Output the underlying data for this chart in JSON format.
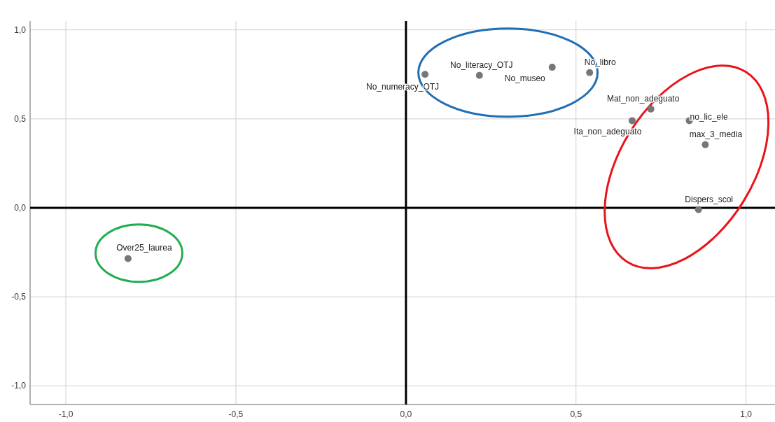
{
  "chart_data": {
    "type": "scatter",
    "x": [
      0.056,
      0.216,
      0.43,
      0.54,
      0.72,
      0.665,
      0.833,
      0.88,
      0.86,
      -0.817
    ],
    "values": [
      0.75,
      0.744,
      0.79,
      0.76,
      0.555,
      0.49,
      0.49,
      0.355,
      -0.01,
      -0.285
    ],
    "color": "#777777",
    "marker": "circle",
    "xlim": [
      -1.105,
      1.085
    ],
    "ylim": [
      -1.105,
      1.05
    ],
    "xticks": [
      {
        "value": -1,
        "label": "-1,0"
      },
      {
        "value": -0.5,
        "label": "-0,5"
      },
      {
        "value": 0,
        "label": "0,0"
      },
      {
        "value": 0.5,
        "label": "0,5"
      },
      {
        "value": 1,
        "label": "1,0"
      }
    ],
    "yticks": [
      {
        "value": -1,
        "label": "-1,0"
      },
      {
        "value": -0.5,
        "label": "-0,5"
      },
      {
        "value": 0,
        "label": "0,0"
      },
      {
        "value": 0.5,
        "label": "0,5"
      },
      {
        "value": 1,
        "label": "1,0"
      }
    ],
    "grid": true,
    "annotations": [
      {
        "text": "No_numeracy_OTJ",
        "x": 0.056,
        "y": 0.75
      },
      {
        "text": "No_literacy_OTJ",
        "x": 0.216,
        "y": 0.744
      },
      {
        "text": "No_museo",
        "x": 0.43,
        "y": 0.79
      },
      {
        "text": "No_libro",
        "x": 0.54,
        "y": 0.76
      },
      {
        "text": "Mat_non_adeguato",
        "x": 0.72,
        "y": 0.555
      },
      {
        "text": "Ita_non_adeguato",
        "x": 0.665,
        "y": 0.49
      },
      {
        "text": "no_lic_ele",
        "x": 0.833,
        "y": 0.49
      },
      {
        "text": "max_3_media",
        "x": 0.88,
        "y": 0.355
      },
      {
        "text": "Dispers_scol",
        "x": 0.86,
        "y": -0.01
      },
      {
        "text": "Over25_laurea",
        "x": -0.817,
        "y": -0.285
      }
    ]
  }
}
